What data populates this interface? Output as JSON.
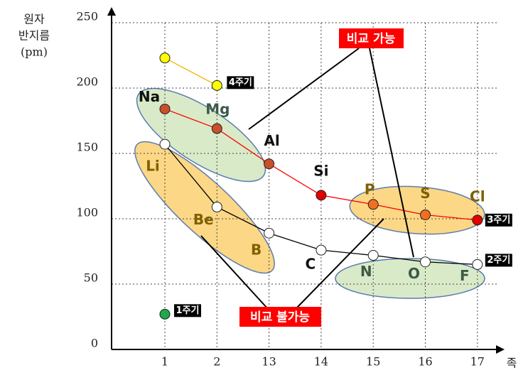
{
  "chart_data": {
    "type": "line",
    "y_label": [
      "원자",
      "반지름",
      "(pm)"
    ],
    "x_label": "족",
    "categories": [
      "1",
      "2",
      "13",
      "14",
      "15",
      "16",
      "17"
    ],
    "ylim": [
      0,
      250
    ],
    "yticks": [
      0,
      50,
      100,
      150,
      200,
      250
    ],
    "grid": true,
    "series": [
      {
        "name": "4주기",
        "color": "#f0b400",
        "marker_colors": [
          "#ffff00",
          "#ffff00",
          null,
          null,
          null,
          null,
          null
        ],
        "values": [
          223,
          202,
          null,
          null,
          null,
          null,
          null
        ]
      },
      {
        "name": "3주기",
        "color": "#ff0000",
        "marker_colors": [
          "#c8502a",
          "#c8502a",
          "#c8502a",
          "#e00000",
          "#f07020",
          "#f07020",
          "#e00000"
        ],
        "values": [
          184,
          169,
          142,
          118,
          111,
          103,
          99
        ],
        "labels": [
          "Na",
          "Mg",
          "Al",
          "Si",
          "P",
          "S",
          "Cl"
        ],
        "label_colors": [
          "#111",
          "#3d5a46",
          "#111",
          "#111",
          "#7f6000",
          "#7f6000",
          "#7f6000"
        ]
      },
      {
        "name": "2주기",
        "color": "#000000",
        "marker_colors": [
          "#ffffff",
          "#ffffff",
          "#ffffff",
          "#ffffff",
          "#ffffff",
          "#ffffff",
          "#ffffff"
        ],
        "values": [
          157,
          109,
          89,
          76,
          72,
          67,
          65
        ],
        "labels": [
          "Li",
          "Be",
          "B",
          "C",
          "N",
          "O",
          "F"
        ],
        "label_colors": [
          "#7f6000",
          "#7f6000",
          "#7f6000",
          "#111",
          "#3d5a46",
          "#3d5a46",
          "#3d5a46"
        ]
      },
      {
        "name": "1주기",
        "color": "#000000",
        "marker_colors": [
          "#1fa84a",
          null,
          null,
          null,
          null,
          null,
          null
        ],
        "values": [
          27,
          null,
          null,
          null,
          null,
          null,
          null
        ]
      }
    ],
    "annotations": [
      "비교 가능",
      "비교 불가능"
    ]
  }
}
